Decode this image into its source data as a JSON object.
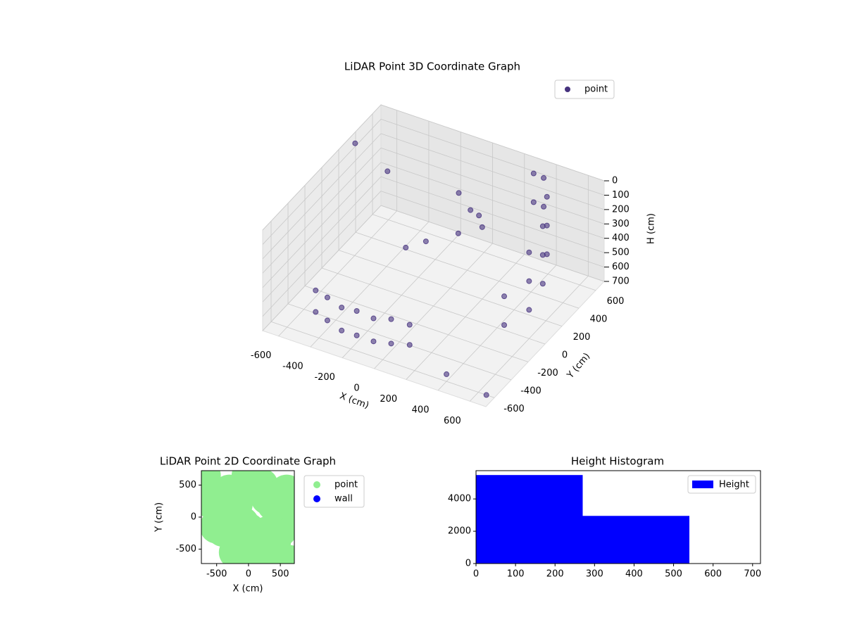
{
  "chart_data": [
    {
      "type": "scatter3d",
      "title": "LiDAR Point 3D Coordinate Graph",
      "x_label": "X (cm)",
      "y_label": "Y (cm)",
      "z_label": "H (cm)",
      "xlim": [
        -700,
        700
      ],
      "ylim": [
        -700,
        700
      ],
      "zlim": [
        0,
        700
      ],
      "z_inverted": true,
      "xticks": [
        -600,
        -400,
        -200,
        0,
        200,
        400,
        600
      ],
      "yticks": [
        -600,
        -400,
        -200,
        0,
        200,
        400,
        600
      ],
      "zticks": [
        0,
        100,
        200,
        300,
        400,
        500,
        600,
        700
      ],
      "grid": true,
      "legend": "upper right",
      "series": [
        {
          "name": "point",
          "color": "#46327e",
          "x": [
            -500,
            -500,
            -400,
            -400,
            -300,
            -300,
            -200,
            -200,
            -100,
            -100,
            0,
            0,
            100,
            100,
            550,
            550,
            600,
            600,
            600,
            580,
            580,
            580,
            500,
            500,
            500,
            400,
            400,
            300,
            300,
            0,
            100,
            200,
            100,
            50,
            -100,
            -200,
            -650,
            650,
            400,
            -500
          ],
          "y": [
            -450,
            -450,
            -500,
            -500,
            -520,
            -520,
            -530,
            -530,
            -520,
            -520,
            -500,
            -500,
            -470,
            -470,
            -200,
            -200,
            0,
            0,
            0,
            200,
            200,
            200,
            400,
            400,
            400,
            550,
            550,
            620,
            620,
            300,
            250,
            200,
            350,
            200,
            100,
            50,
            300,
            -600,
            -600,
            400
          ],
          "z": [
            500,
            650,
            480,
            640,
            500,
            660,
            480,
            650,
            500,
            660,
            480,
            650,
            500,
            640,
            300,
            500,
            100,
            300,
            500,
            50,
            250,
            450,
            0,
            200,
            400,
            0,
            200,
            50,
            250,
            100,
            150,
            200,
            250,
            300,
            350,
            400,
            0,
            700,
            650,
            200
          ]
        }
      ]
    },
    {
      "type": "scatter",
      "title": "LiDAR Point 2D Coordinate Graph",
      "x_label": "X (cm)",
      "y_label": "Y (cm)",
      "xlim": [
        -740,
        720
      ],
      "ylim": [
        -725,
        725
      ],
      "xticks": [
        -500,
        0,
        500
      ],
      "yticks": [
        -500,
        0,
        500
      ],
      "legend": "outside right",
      "series": [
        {
          "name": "point",
          "color": "#90ee90",
          "x": [
            -700,
            -650,
            -600,
            -500,
            -400,
            -300,
            -200,
            -100,
            0,
            100,
            200,
            300,
            400,
            500,
            600,
            -200,
            -100,
            0,
            100,
            200,
            300,
            400,
            0,
            100,
            200,
            -300,
            -200,
            300,
            400,
            600,
            650
          ],
          "y": [
            650,
            300,
            250,
            -150,
            -200,
            -180,
            -150,
            -100,
            -200,
            -300,
            -350,
            -250,
            -400,
            -200,
            100,
            -550,
            -600,
            -650,
            -600,
            -500,
            -450,
            -550,
            650,
            600,
            500,
            400,
            200,
            300,
            200,
            400,
            -700
          ]
        },
        {
          "name": "wall",
          "color": "#0000ff",
          "x": [],
          "y": []
        }
      ]
    },
    {
      "type": "histogram",
      "title": "Height Histogram",
      "xlim": [
        0,
        720
      ],
      "ylim": [
        0,
        5750
      ],
      "xticks": [
        0,
        100,
        200,
        300,
        400,
        500,
        600,
        700
      ],
      "yticks": [
        0,
        2000,
        4000
      ],
      "legend": "upper right",
      "bins": [
        0,
        270,
        540,
        810
      ],
      "series": [
        {
          "name": "Height",
          "color": "#0000ff",
          "values": [
            5480,
            2950,
            10
          ]
        }
      ]
    }
  ]
}
